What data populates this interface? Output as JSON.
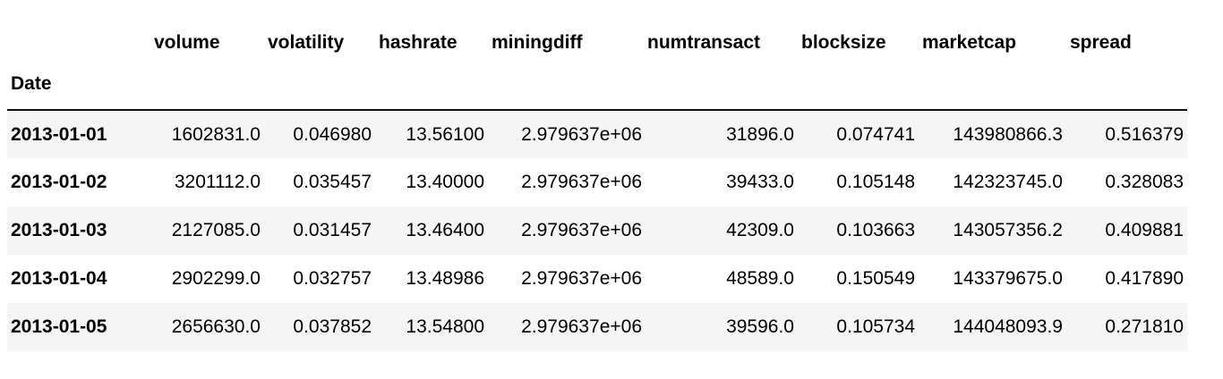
{
  "table": {
    "index_name": "Date",
    "columns": [
      "volume",
      "volatility",
      "hashrate",
      "miningdiff",
      "numtransact",
      "blocksize",
      "marketcap",
      "spread"
    ],
    "rows": [
      {
        "index": "2013-01-01",
        "values": [
          "1602831.0",
          "0.046980",
          "13.56100",
          "2.979637e+06",
          "31896.0",
          "0.074741",
          "143980866.3",
          "0.516379"
        ]
      },
      {
        "index": "2013-01-02",
        "values": [
          "3201112.0",
          "0.035457",
          "13.40000",
          "2.979637e+06",
          "39433.0",
          "0.105148",
          "142323745.0",
          "0.328083"
        ]
      },
      {
        "index": "2013-01-03",
        "values": [
          "2127085.0",
          "0.031457",
          "13.46400",
          "2.979637e+06",
          "42309.0",
          "0.103663",
          "143057356.2",
          "0.409881"
        ]
      },
      {
        "index": "2013-01-04",
        "values": [
          "2902299.0",
          "0.032757",
          "13.48986",
          "2.979637e+06",
          "48589.0",
          "0.150549",
          "143379675.0",
          "0.417890"
        ]
      },
      {
        "index": "2013-01-05",
        "values": [
          "2656630.0",
          "0.037852",
          "13.54800",
          "2.979637e+06",
          "39596.0",
          "0.105734",
          "144048093.9",
          "0.271810"
        ]
      }
    ]
  }
}
